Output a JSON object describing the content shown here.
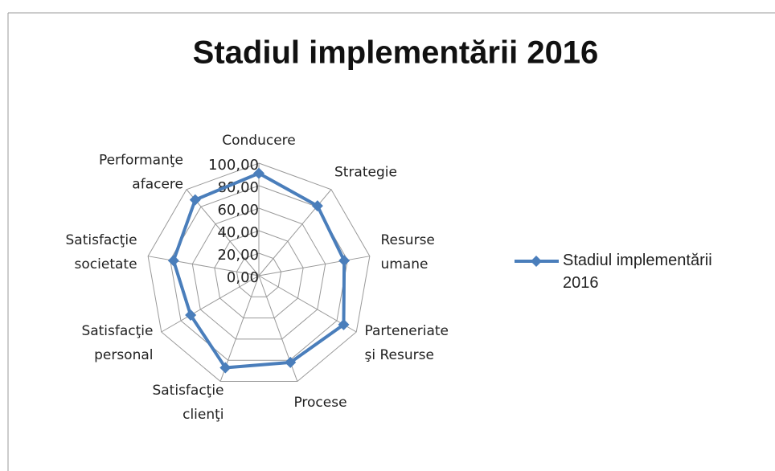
{
  "chart_data": {
    "type": "radar",
    "title": "Stadiul implementării 2016",
    "categories": [
      "Conducere",
      "Strategie",
      "Resurse\numane",
      "Parteneriate\nşi Resurse",
      "Procese",
      "Satisfacţie\nclienţi",
      "Satisfacţie\npersonal",
      "Satisfacţie\nsocietate",
      "Performanţe\nafacere"
    ],
    "series": [
      {
        "name": "Stadiul implementării 2016",
        "color": "#4a7ebb",
        "values": [
          91,
          81,
          77,
          87,
          82,
          87,
          70,
          77,
          88
        ]
      }
    ],
    "ylim": [
      0,
      100
    ],
    "yticks": [
      {
        "value": 0,
        "label": "0,00"
      },
      {
        "value": 20,
        "label": "20,00"
      },
      {
        "value": 40,
        "label": "40,00"
      },
      {
        "value": 60,
        "label": "60,00"
      },
      {
        "value": 80,
        "label": "80,00"
      },
      {
        "value": 100,
        "label": "100,00"
      }
    ],
    "grid": true,
    "legend": "right"
  }
}
